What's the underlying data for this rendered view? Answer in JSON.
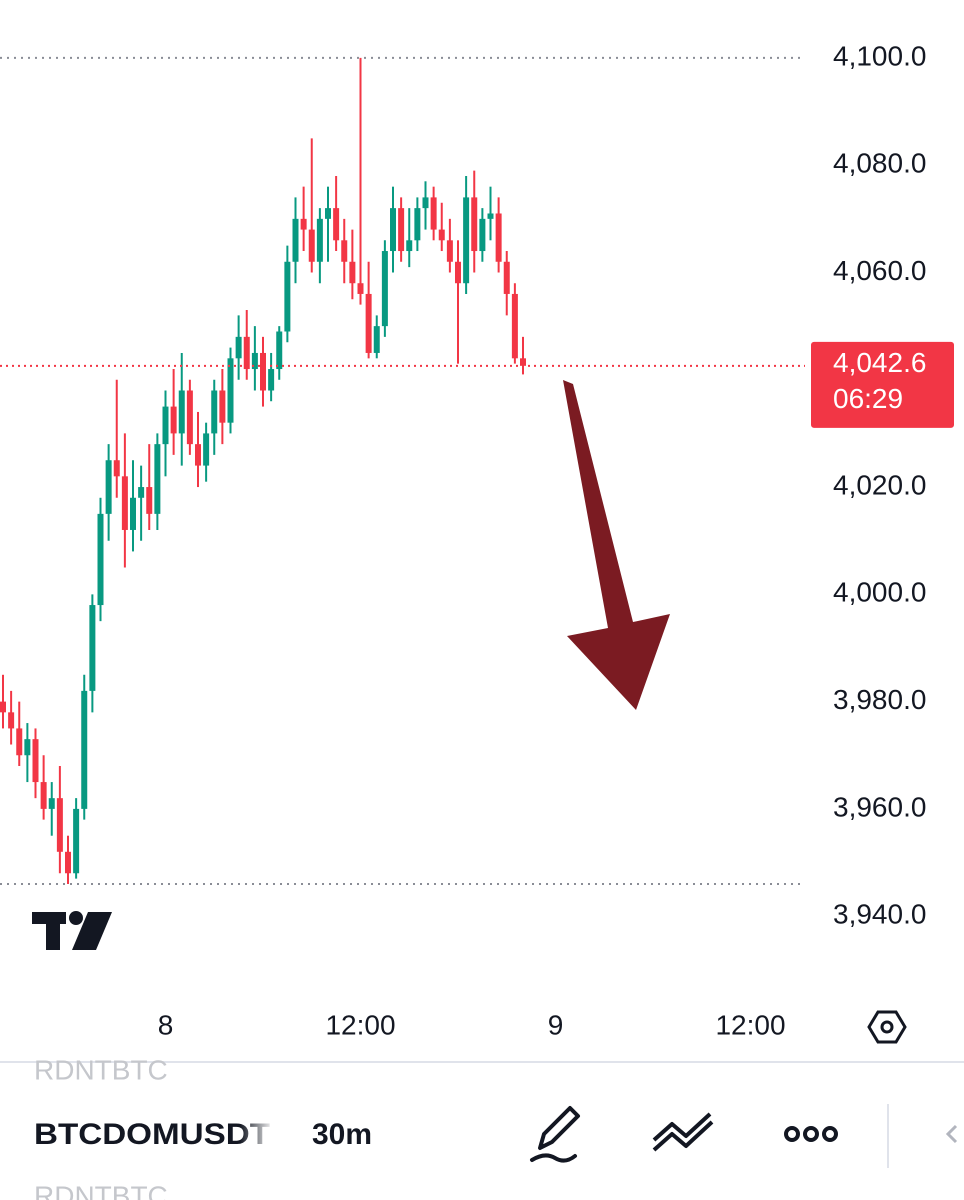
{
  "chart_data": {
    "type": "candlestick",
    "up_color": "#089981",
    "down_color": "#f23645",
    "ylim": [
      3928.1,
      4110.8
    ],
    "yticks": [
      {
        "value": 4100,
        "label": "4,100.0"
      },
      {
        "value": 4080,
        "label": "4,080.0"
      },
      {
        "value": 4060,
        "label": "4,060.0"
      },
      {
        "value": 4020,
        "label": "4,020.0"
      },
      {
        "value": 4000,
        "label": "4,000.0"
      },
      {
        "value": 3980,
        "label": "3,980.0"
      },
      {
        "value": 3960,
        "label": "3,960.0"
      },
      {
        "value": 3940,
        "label": "3,940.0"
      }
    ],
    "xticks": [
      {
        "value": 20,
        "label": "8"
      },
      {
        "value": 44,
        "label": "12:00"
      },
      {
        "value": 68,
        "label": "9"
      },
      {
        "value": 92,
        "label": "12:00"
      }
    ],
    "last_price": {
      "value": 4042.6,
      "label": "4,042.6"
    },
    "countdown": "06:29",
    "open": [
      3980,
      3978,
      3975,
      3970,
      3973,
      3965,
      3960,
      3962,
      3952,
      3948,
      3960,
      3982,
      3998,
      4015,
      4025,
      4022,
      4012,
      4018,
      4020,
      4015,
      4028,
      4035,
      4030,
      4038,
      4028,
      4024,
      4030,
      4038,
      4032,
      4044,
      4048,
      4042,
      4045,
      4038,
      4042,
      4049,
      4062,
      4070,
      4068,
      4062,
      4070,
      4072,
      4066,
      4062,
      4058,
      4056,
      4045,
      4050,
      4064,
      4072,
      4064,
      4066,
      4072,
      4074,
      4068,
      4066,
      4062,
      4058,
      4074,
      4064,
      4070,
      4071,
      4062,
      4056,
      4044
    ],
    "high": [
      3985,
      3982,
      3980,
      3976,
      3975,
      3970,
      3965,
      3968,
      3955,
      3962,
      3985,
      4000,
      4018,
      4028,
      4040,
      4030,
      4025,
      4024,
      4028,
      4030,
      4038,
      4042,
      4045,
      4040,
      4034,
      4032,
      4040,
      4042,
      4046,
      4052,
      4053,
      4050,
      4048,
      4045,
      4050,
      4065,
      4074,
      4076,
      4085,
      4072,
      4076,
      4078,
      4070,
      4068,
      4100,
      4062,
      4052,
      4066,
      4076,
      4074,
      4072,
      4074,
      4077,
      4076,
      4073,
      4070,
      4066,
      4078,
      4079,
      4072,
      4076,
      4074,
      4064,
      4058,
      4048
    ],
    "low": [
      3975,
      3972,
      3968,
      3965,
      3962,
      3958,
      3955,
      3948,
      3946,
      3947,
      3958,
      3978,
      3995,
      4010,
      4018,
      4005,
      4008,
      4010,
      4012,
      4012,
      4022,
      4026,
      4024,
      4026,
      4020,
      4021,
      4026,
      4028,
      4030,
      4040,
      4040,
      4038,
      4035,
      4036,
      4040,
      4047,
      4058,
      4064,
      4060,
      4058,
      4062,
      4064,
      4058,
      4055,
      4054,
      4044,
      4044,
      4048,
      4060,
      4062,
      4061,
      4064,
      4068,
      4066,
      4064,
      4060,
      4043,
      4056,
      4060,
      4062,
      4066,
      4060,
      4052,
      4043,
      4041
    ],
    "close": [
      3978,
      3975,
      3970,
      3973,
      3965,
      3960,
      3962,
      3952,
      3948,
      3960,
      3982,
      3998,
      4015,
      4025,
      4022,
      4012,
      4018,
      4020,
      4015,
      4028,
      4035,
      4030,
      4038,
      4028,
      4024,
      4030,
      4038,
      4032,
      4044,
      4048,
      4042,
      4045,
      4038,
      4042,
      4049,
      4062,
      4070,
      4068,
      4062,
      4070,
      4072,
      4066,
      4062,
      4058,
      4056,
      4045,
      4050,
      4064,
      4072,
      4064,
      4066,
      4072,
      4074,
      4068,
      4066,
      4062,
      4058,
      4074,
      4064,
      4070,
      4071,
      4062,
      4056,
      4044,
      4042.6
    ]
  },
  "toolbar": {
    "symbol": "BTCDOMUSDT",
    "interval": "30m",
    "list_items": [
      "RDNTBTC",
      "RDNTBTC"
    ]
  }
}
